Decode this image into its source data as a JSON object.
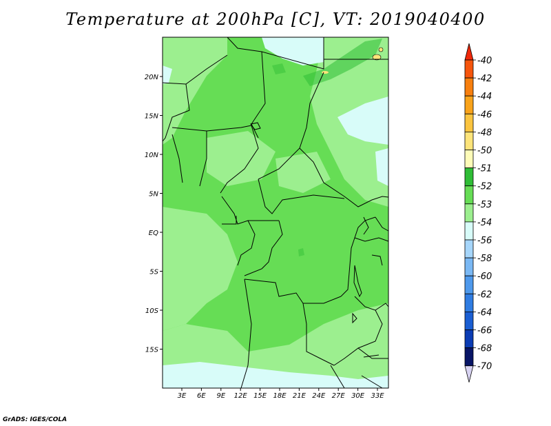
{
  "title": "Temperature at 200hPa [C], VT: 2019040400",
  "credit": "GrADS: IGES/COLA",
  "map": {
    "lon_labels": [
      "3E",
      "6E",
      "9E",
      "12E",
      "15E",
      "18E",
      "21E",
      "24E",
      "27E",
      "30E",
      "33E"
    ],
    "lat_labels": [
      "20N",
      "15N",
      "10N",
      "5N",
      "EQ",
      "5S",
      "10S",
      "15S"
    ]
  },
  "colorbar": {
    "labels": [
      "-40",
      "-42",
      "-44",
      "-46",
      "-48",
      "-50",
      "-51",
      "-52",
      "-53",
      "-54",
      "-56",
      "-58",
      "-60",
      "-62",
      "-64",
      "-66",
      "-68",
      "-70"
    ],
    "colors": [
      "#f0290a",
      "#f6550c",
      "#f77f0e",
      "#f9a31a",
      "#fbc43f",
      "#fde47a",
      "#fefcb8",
      "#2fbd36",
      "#66dd55",
      "#9cef8f",
      "#d8fcf9",
      "#a6d6fb",
      "#7ab8f4",
      "#4e99ec",
      "#2f7ce2",
      "#1a5ed3",
      "#0b3cb4",
      "#081566",
      "#d8d3f2"
    ],
    "colors_note": ""
  },
  "colors": {
    "field_dominant": "#66dd55",
    "field_light": "#9cef8f",
    "field_cool": "#d8fcf9",
    "field_warm_spot": "#fde47a",
    "border_line": "#000000"
  }
}
